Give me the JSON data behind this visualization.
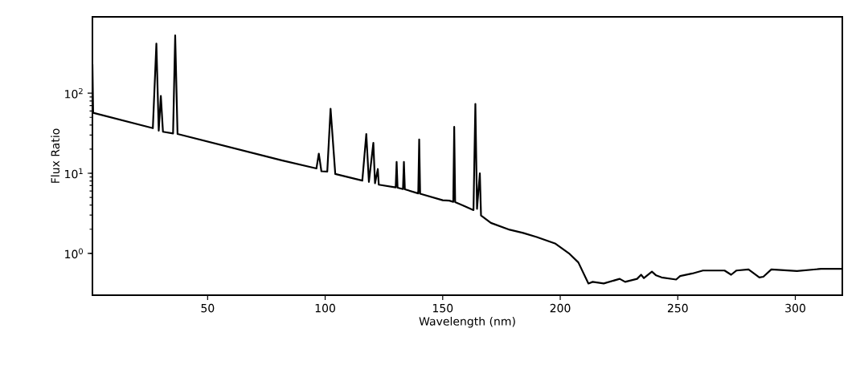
{
  "chart_data": {
    "type": "line",
    "xlabel": "Wavelength (nm)",
    "ylabel": "Flux Ratio",
    "log": "y",
    "xlim": [
      1,
      320
    ],
    "ylim": [
      0.3,
      900
    ],
    "xticks": [
      50,
      100,
      150,
      200,
      250,
      300
    ],
    "yticks": [
      {
        "value": 1,
        "label": "10$^{0}$"
      },
      {
        "value": 10,
        "label": "10$^{1}$"
      },
      {
        "value": 100,
        "label": "10$^{2}$"
      }
    ],
    "marker": "none",
    "line_style": "solid",
    "series": [
      {
        "color": "#000000",
        "x": [
          1,
          1.3,
          26.7,
          28.2,
          29.2,
          30.1,
          31.0,
          35.3,
          36.2,
          37.2,
          81.5,
          96.3,
          97.3,
          98.4,
          100.9,
          102.3,
          104.3,
          115.8,
          117.5,
          118.6,
          120.5,
          121.2,
          122.4,
          122.8,
          130.0,
          130.4,
          130.8,
          133.1,
          133.5,
          133.9,
          139.6,
          140.0,
          140.4,
          150,
          152.8,
          154.5,
          154.9,
          155.3,
          159.1,
          163.1,
          163.9,
          164.6,
          165.8,
          166.3,
          170.5,
          178.5,
          184.2,
          190,
          198,
          203.7,
          207.7,
          212.0,
          213.8,
          218.5,
          225.3,
          227.6,
          232.7,
          234.4,
          235.6,
          239,
          240.8,
          243.1,
          249.3,
          251,
          256.2,
          260.7,
          269.9,
          272.7,
          275,
          280.1,
          284.7,
          286.4,
          289.8,
          300.7,
          311,
          320
        ],
        "values": [
          230,
          57,
          36.6,
          418,
          34,
          92.6,
          33,
          31.4,
          527,
          31,
          14.5,
          11.5,
          17.6,
          10.6,
          10.5,
          64,
          9.8,
          8.1,
          31,
          7.8,
          24,
          7.5,
          11.3,
          7.2,
          6.65,
          13.9,
          6.6,
          6.35,
          13.9,
          6.3,
          5.6,
          26.5,
          5.55,
          4.6,
          4.55,
          4.4,
          38,
          4.37,
          3.9,
          3.47,
          73.5,
          3.6,
          10.0,
          2.97,
          2.4,
          1.97,
          1.8,
          1.6,
          1.32,
          1.0,
          0.77,
          0.42,
          0.44,
          0.42,
          0.48,
          0.44,
          0.48,
          0.54,
          0.49,
          0.59,
          0.53,
          0.5,
          0.47,
          0.52,
          0.56,
          0.61,
          0.61,
          0.54,
          0.61,
          0.63,
          0.5,
          0.51,
          0.63,
          0.6,
          0.64,
          0.64
        ]
      }
    ]
  }
}
